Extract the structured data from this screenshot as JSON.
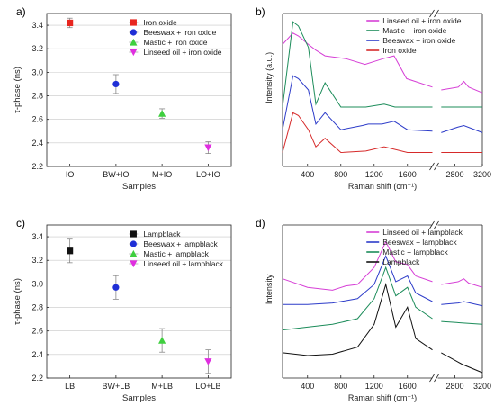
{
  "chart_data": [
    {
      "panel_label": "a)",
      "type": "scatter",
      "ylabel": "τ-phase (ns)",
      "xlabel": "Samples",
      "categories": [
        "IO",
        "BW+IO",
        "M+IO",
        "LO+IO"
      ],
      "ylim": [
        2.2,
        3.5
      ],
      "yticks": [
        "2.2",
        "2.4",
        "2.6",
        "2.8",
        "3.0",
        "3.2",
        "3.4"
      ],
      "grid": true,
      "legend_position": "top-right",
      "series": [
        {
          "name": "Iron oxide",
          "category": "IO",
          "value": 3.42,
          "error": 0.04,
          "color": "#e8261f",
          "marker": "square"
        },
        {
          "name": "Beeswax + iron oxide",
          "category": "BW+IO",
          "value": 2.9,
          "error": 0.08,
          "color": "#1f2fd6",
          "marker": "circle"
        },
        {
          "name": "Mastic + iron oxide",
          "category": "M+IO",
          "value": 2.65,
          "error": 0.04,
          "color": "#3fcf3f",
          "marker": "triangle-up"
        },
        {
          "name": "Linseed oil + iron oxide",
          "category": "LO+IO",
          "value": 2.36,
          "error": 0.05,
          "color": "#e02ee0",
          "marker": "triangle-down"
        }
      ]
    },
    {
      "panel_label": "b)",
      "type": "line",
      "ylabel": "Intensity (a.u.)",
      "xlabel": "Raman shift (cm⁻¹)",
      "xticks": [
        "400",
        "800",
        "1200",
        "1600",
        "2800",
        "3200"
      ],
      "x_axis_break": [
        1900,
        2550
      ],
      "xlim": [
        100,
        3200
      ],
      "legend_position": "top-right",
      "series": [
        {
          "name": "Linseed oil + iron oxide",
          "color": "#d63fd6",
          "x": [
            100,
            225,
            290,
            410,
            500,
            610,
            860,
            1090,
            1310,
            1440,
            1590,
            1900,
            2600,
            2850,
            2930,
            3000,
            3200
          ],
          "y": [
            0.82,
            0.9,
            0.88,
            0.82,
            0.78,
            0.74,
            0.72,
            0.68,
            0.72,
            0.74,
            0.58,
            0.52,
            0.5,
            0.52,
            0.56,
            0.52,
            0.48
          ]
        },
        {
          "name": "Mastic + iron oxide",
          "color": "#1c8c5a",
          "x": [
            100,
            225,
            290,
            410,
            500,
            610,
            800,
            1100,
            1320,
            1450,
            1600,
            1900,
            2600,
            2900,
            3200
          ],
          "y": [
            0.38,
            0.98,
            0.95,
            0.8,
            0.4,
            0.55,
            0.38,
            0.38,
            0.4,
            0.38,
            0.38,
            0.38,
            0.38,
            0.38,
            0.38
          ]
        },
        {
          "name": "Beeswax + iron oxide",
          "color": "#2d3cc9",
          "x": [
            100,
            225,
            290,
            410,
            500,
            610,
            800,
            1060,
            1130,
            1295,
            1440,
            1600,
            1900,
            2600,
            2850,
            2930,
            3200
          ],
          "y": [
            0.22,
            0.6,
            0.58,
            0.5,
            0.26,
            0.34,
            0.22,
            0.25,
            0.26,
            0.26,
            0.28,
            0.22,
            0.21,
            0.2,
            0.24,
            0.25,
            0.2
          ]
        },
        {
          "name": "Iron oxide",
          "color": "#d62a2a",
          "x": [
            100,
            225,
            290,
            410,
            500,
            610,
            800,
            1100,
            1320,
            1600,
            1900,
            2600,
            2900,
            3200
          ],
          "y": [
            0.06,
            0.34,
            0.32,
            0.22,
            0.1,
            0.16,
            0.06,
            0.07,
            0.1,
            0.06,
            0.06,
            0.06,
            0.06,
            0.06
          ]
        }
      ]
    },
    {
      "panel_label": "c)",
      "type": "scatter",
      "ylabel": "τ-phase (ns)",
      "xlabel": "Samples",
      "categories": [
        "LB",
        "BW+LB",
        "M+LB",
        "LO+LB"
      ],
      "ylim": [
        2.2,
        3.5
      ],
      "yticks": [
        "2.2",
        "2.4",
        "2.6",
        "2.8",
        "3.0",
        "3.2",
        "3.4"
      ],
      "grid": true,
      "legend_position": "top-right",
      "series": [
        {
          "name": "Lampblack",
          "category": "LB",
          "value": 3.28,
          "error": 0.1,
          "color": "#111111",
          "marker": "square"
        },
        {
          "name": "Beeswax + lampblack",
          "category": "BW+LB",
          "value": 2.97,
          "error": 0.1,
          "color": "#1f2fd6",
          "marker": "circle"
        },
        {
          "name": "Mastic + lampblack",
          "category": "M+LB",
          "value": 2.52,
          "error": 0.1,
          "color": "#3fcf3f",
          "marker": "triangle-up"
        },
        {
          "name": "Linseed oil + lampblack",
          "category": "LO+LB",
          "value": 2.34,
          "error": 0.1,
          "color": "#e02ee0",
          "marker": "triangle-down"
        }
      ]
    },
    {
      "panel_label": "d)",
      "type": "line",
      "ylabel": "Intensity",
      "xlabel": "Raman shift (cm⁻¹)",
      "xticks": [
        "400",
        "800",
        "1200",
        "1600",
        "2800",
        "3200"
      ],
      "x_axis_break": [
        1900,
        2550
      ],
      "xlim": [
        100,
        3200
      ],
      "legend_position": "top-right",
      "series": [
        {
          "name": "Linseed oil + lampblack",
          "color": "#d63fd6",
          "x": [
            100,
            400,
            700,
            860,
            1000,
            1200,
            1340,
            1460,
            1600,
            1700,
            1900,
            2600,
            2850,
            2930,
            3000,
            3200
          ],
          "y": [
            0.66,
            0.6,
            0.58,
            0.61,
            0.62,
            0.74,
            0.92,
            0.78,
            0.76,
            0.68,
            0.64,
            0.62,
            0.64,
            0.66,
            0.63,
            0.6
          ]
        },
        {
          "name": "Beeswax + lampblack",
          "color": "#2d3cc9",
          "x": [
            100,
            400,
            700,
            1000,
            1200,
            1340,
            1460,
            1600,
            1700,
            1900,
            2600,
            2850,
            2930,
            3200
          ],
          "y": [
            0.48,
            0.48,
            0.49,
            0.52,
            0.62,
            0.82,
            0.64,
            0.68,
            0.56,
            0.5,
            0.48,
            0.49,
            0.5,
            0.47
          ]
        },
        {
          "name": "Mastic + lampblack",
          "color": "#1c8c5a",
          "x": [
            100,
            400,
            700,
            1000,
            1200,
            1340,
            1460,
            1600,
            1700,
            1900,
            2600,
            2900,
            3200
          ],
          "y": [
            0.3,
            0.32,
            0.34,
            0.38,
            0.52,
            0.74,
            0.54,
            0.6,
            0.46,
            0.38,
            0.36,
            0.35,
            0.34
          ]
        },
        {
          "name": "Lampblack",
          "color": "#111111",
          "x": [
            100,
            400,
            700,
            1000,
            1200,
            1340,
            1460,
            1600,
            1700,
            1900,
            2600,
            2900,
            3200
          ],
          "y": [
            0.14,
            0.12,
            0.13,
            0.18,
            0.34,
            0.62,
            0.32,
            0.46,
            0.24,
            0.16,
            0.14,
            0.06,
            0.0
          ]
        }
      ]
    }
  ]
}
